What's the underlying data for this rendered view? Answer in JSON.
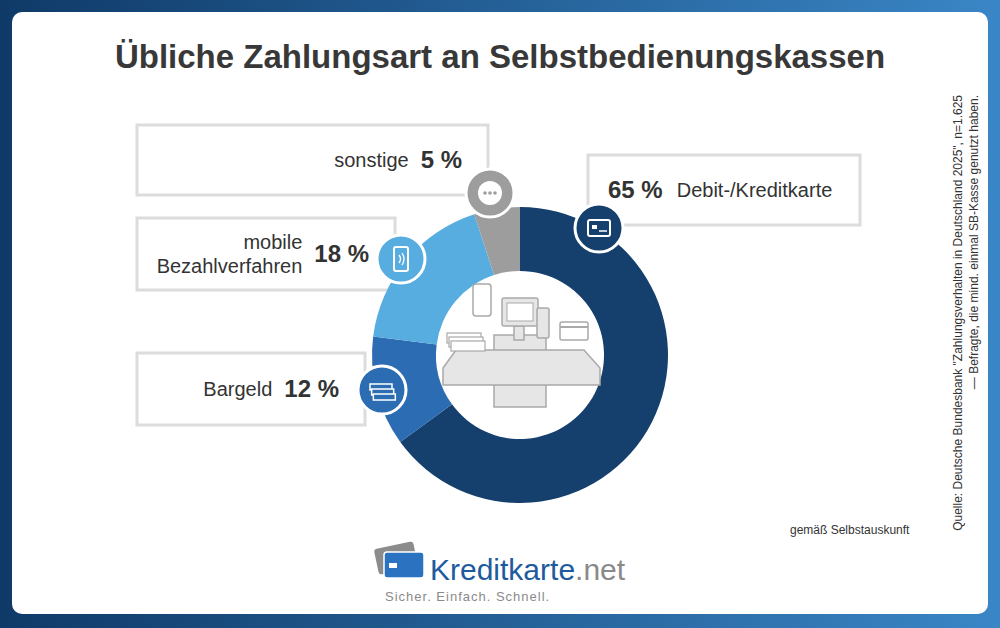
{
  "chart_data": {
    "type": "donut",
    "title": "Übliche Zahlungsart an Selbstbedienungskassen",
    "categories": [
      "Debit-/Kreditkarte",
      "Bargeld",
      "mobile Bezahlverfahren",
      "sonstige"
    ],
    "values": [
      65,
      12,
      18,
      5
    ],
    "value_labels": [
      "65 %",
      "12 %",
      "18 %",
      "5 %"
    ],
    "colors": [
      "#153f6c",
      "#2b6cb2",
      "#58ade0",
      "#9d9d9d"
    ],
    "data_labels": true,
    "annotation": "gemäß Selbstauskunft",
    "source": [
      "Quelle: Deutsche Bundesbank \"Zahlungsverhalten in Deutschland 2025\", n=1.625",
      "— Befragte, die mind. einmal SB-Kasse genutzt haben."
    ]
  },
  "logo": {
    "name": "Kreditkarte",
    "suffix": ".net",
    "tagline": "Sicher. Einfach. Schnell."
  }
}
